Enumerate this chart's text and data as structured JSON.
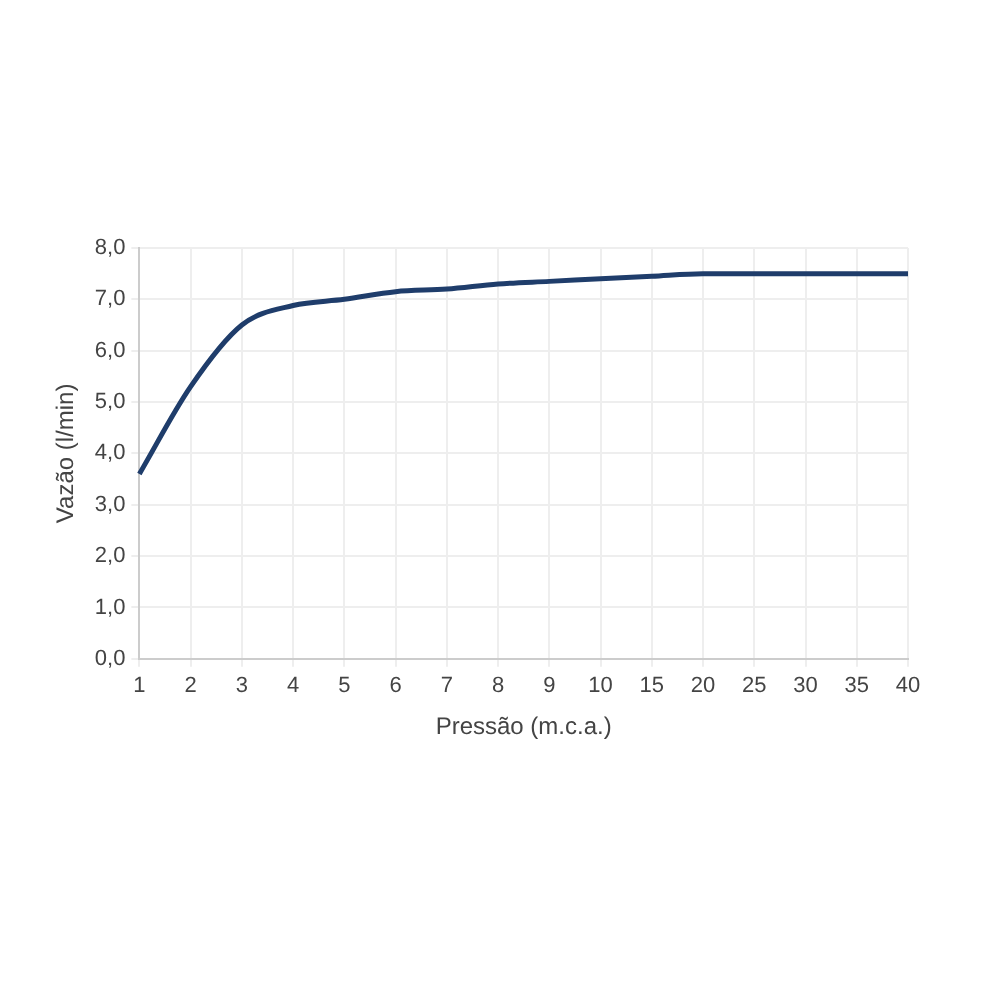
{
  "chart_data": {
    "type": "line",
    "xlabel": "Pressão (m.c.a.)",
    "ylabel": "Vazão (l/min)",
    "categories": [
      "1",
      "2",
      "3",
      "4",
      "5",
      "6",
      "7",
      "8",
      "9",
      "10",
      "15",
      "20",
      "25",
      "30",
      "35",
      "40"
    ],
    "series": [
      {
        "color": "#1f3d6b",
        "values": [
          3.6,
          5.3,
          6.5,
          6.88,
          7.0,
          7.15,
          7.2,
          7.3,
          7.35,
          7.4,
          7.45,
          7.5,
          7.5,
          7.5,
          7.5,
          7.5
        ]
      }
    ],
    "ylim": [
      0,
      8
    ],
    "yticks": [
      {
        "value": 0,
        "label": "0,0"
      },
      {
        "value": 1,
        "label": "1,0"
      },
      {
        "value": 2,
        "label": "2,0"
      },
      {
        "value": 3,
        "label": "3,0"
      },
      {
        "value": 4,
        "label": "4,0"
      },
      {
        "value": 5,
        "label": "5,0"
      },
      {
        "value": 6,
        "label": "6,0"
      },
      {
        "value": 7,
        "label": "7,0"
      },
      {
        "value": 8,
        "label": "8,0"
      }
    ],
    "grid": true,
    "legend": false,
    "marker": "none",
    "line_style": "solid"
  }
}
